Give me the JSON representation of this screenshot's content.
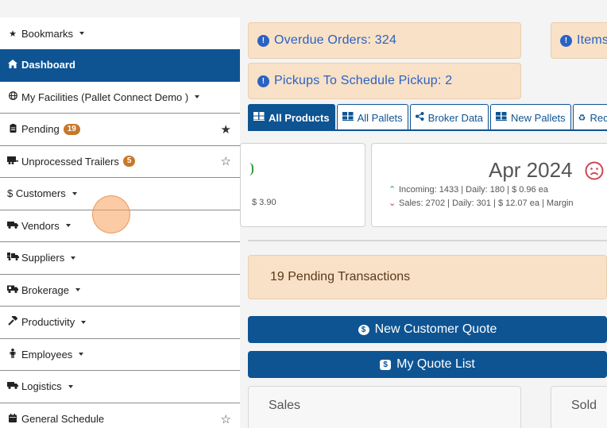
{
  "sidebar": {
    "bookmarks": "Bookmarks",
    "items": [
      {
        "label": "Dashboard"
      },
      {
        "label": "My Facilities (Pallet Connect Demo )"
      },
      {
        "label": "Pending",
        "badge": "19"
      },
      {
        "label": "Unprocessed Trailers",
        "badge": "5"
      },
      {
        "label": "$ Customers"
      },
      {
        "label": "Vendors"
      },
      {
        "label": "Suppliers"
      },
      {
        "label": "Brokerage"
      },
      {
        "label": "Productivity"
      },
      {
        "label": "Employees"
      },
      {
        "label": "Logistics"
      },
      {
        "label": "General Schedule"
      }
    ]
  },
  "alerts": {
    "overdue_orders": "Overdue Orders: 324",
    "items": "Items",
    "pickups": "Pickups To Schedule Pickup: 2"
  },
  "tabs": [
    "All Products",
    "All Pallets",
    "Broker Data",
    "New Pallets",
    "Rec"
  ],
  "stats": {
    "left_price": "$ 3.90",
    "period": "Apr 2024",
    "incoming": "Incoming: 1433 | Daily: 180 | $ 0.96 ea",
    "sales": "Sales: 2702 | Daily: 301 | $ 12.07 ea | Margin"
  },
  "pending_transactions": "19 Pending Transactions",
  "buttons": {
    "new_quote": "New Customer Quote",
    "quote_list": "My Quote List"
  },
  "panels": {
    "sales": "Sales",
    "sold": "Sold"
  },
  "colors": {
    "primary": "#0e5493",
    "alert_bg": "#f8e1c7",
    "alert_text": "#2a62c4",
    "badge": "#c8782a",
    "sad_icon": "#d0454f",
    "up_arrow": "#2e9a3a",
    "down_arrow": "#c0392b"
  }
}
